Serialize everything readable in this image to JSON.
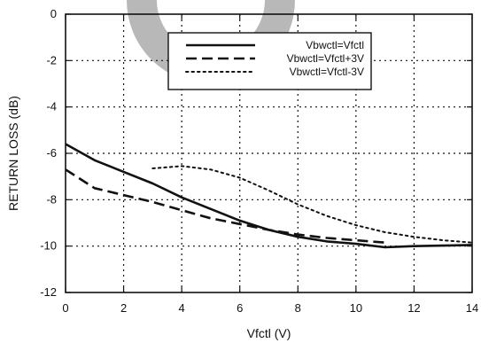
{
  "chart_data": {
    "type": "line",
    "title": "",
    "xlabel": "Vfctl (V)",
    "ylabel": "RETURN LOSS (dB)",
    "xlim": [
      0,
      14
    ],
    "ylim": [
      -12,
      0
    ],
    "xticks": [
      0,
      2,
      4,
      6,
      8,
      10,
      12,
      14
    ],
    "yticks": [
      0,
      -2,
      -4,
      -6,
      -8,
      -10,
      -12
    ],
    "grid": true,
    "grid_style": "dotted",
    "legend_position": "top-center",
    "series": [
      {
        "name": "Vbwctl=Vfctl",
        "style": "solid",
        "x": [
          0,
          1,
          2,
          3,
          4,
          5,
          6,
          7,
          8,
          9,
          10,
          11,
          12,
          13,
          14
        ],
        "y": [
          -5.6,
          -6.3,
          -6.8,
          -7.3,
          -7.9,
          -8.4,
          -8.9,
          -9.3,
          -9.6,
          -9.8,
          -9.9,
          -10.05,
          -10.0,
          -9.98,
          -9.95
        ]
      },
      {
        "name": "Vbwctl=Vfctl+3V",
        "style": "dashed",
        "x": [
          0,
          1,
          2,
          3,
          4,
          5,
          6,
          7,
          8,
          9,
          10,
          11
        ],
        "y": [
          -6.7,
          -7.5,
          -7.8,
          -8.1,
          -8.45,
          -8.8,
          -9.05,
          -9.3,
          -9.5,
          -9.65,
          -9.75,
          -9.85
        ]
      },
      {
        "name": "Vbwctl=Vfctl-3V",
        "style": "dotted",
        "x": [
          3,
          4,
          5,
          6,
          7,
          8,
          9,
          10,
          11,
          12,
          13,
          14
        ],
        "y": [
          -6.65,
          -6.55,
          -6.7,
          -7.05,
          -7.6,
          -8.2,
          -8.7,
          -9.1,
          -9.4,
          -9.6,
          -9.75,
          -9.85
        ]
      }
    ]
  },
  "colors": {
    "line": "#111111",
    "grid": "#111111",
    "watermark": "#b8b8b8",
    "background": "#ffffff"
  }
}
